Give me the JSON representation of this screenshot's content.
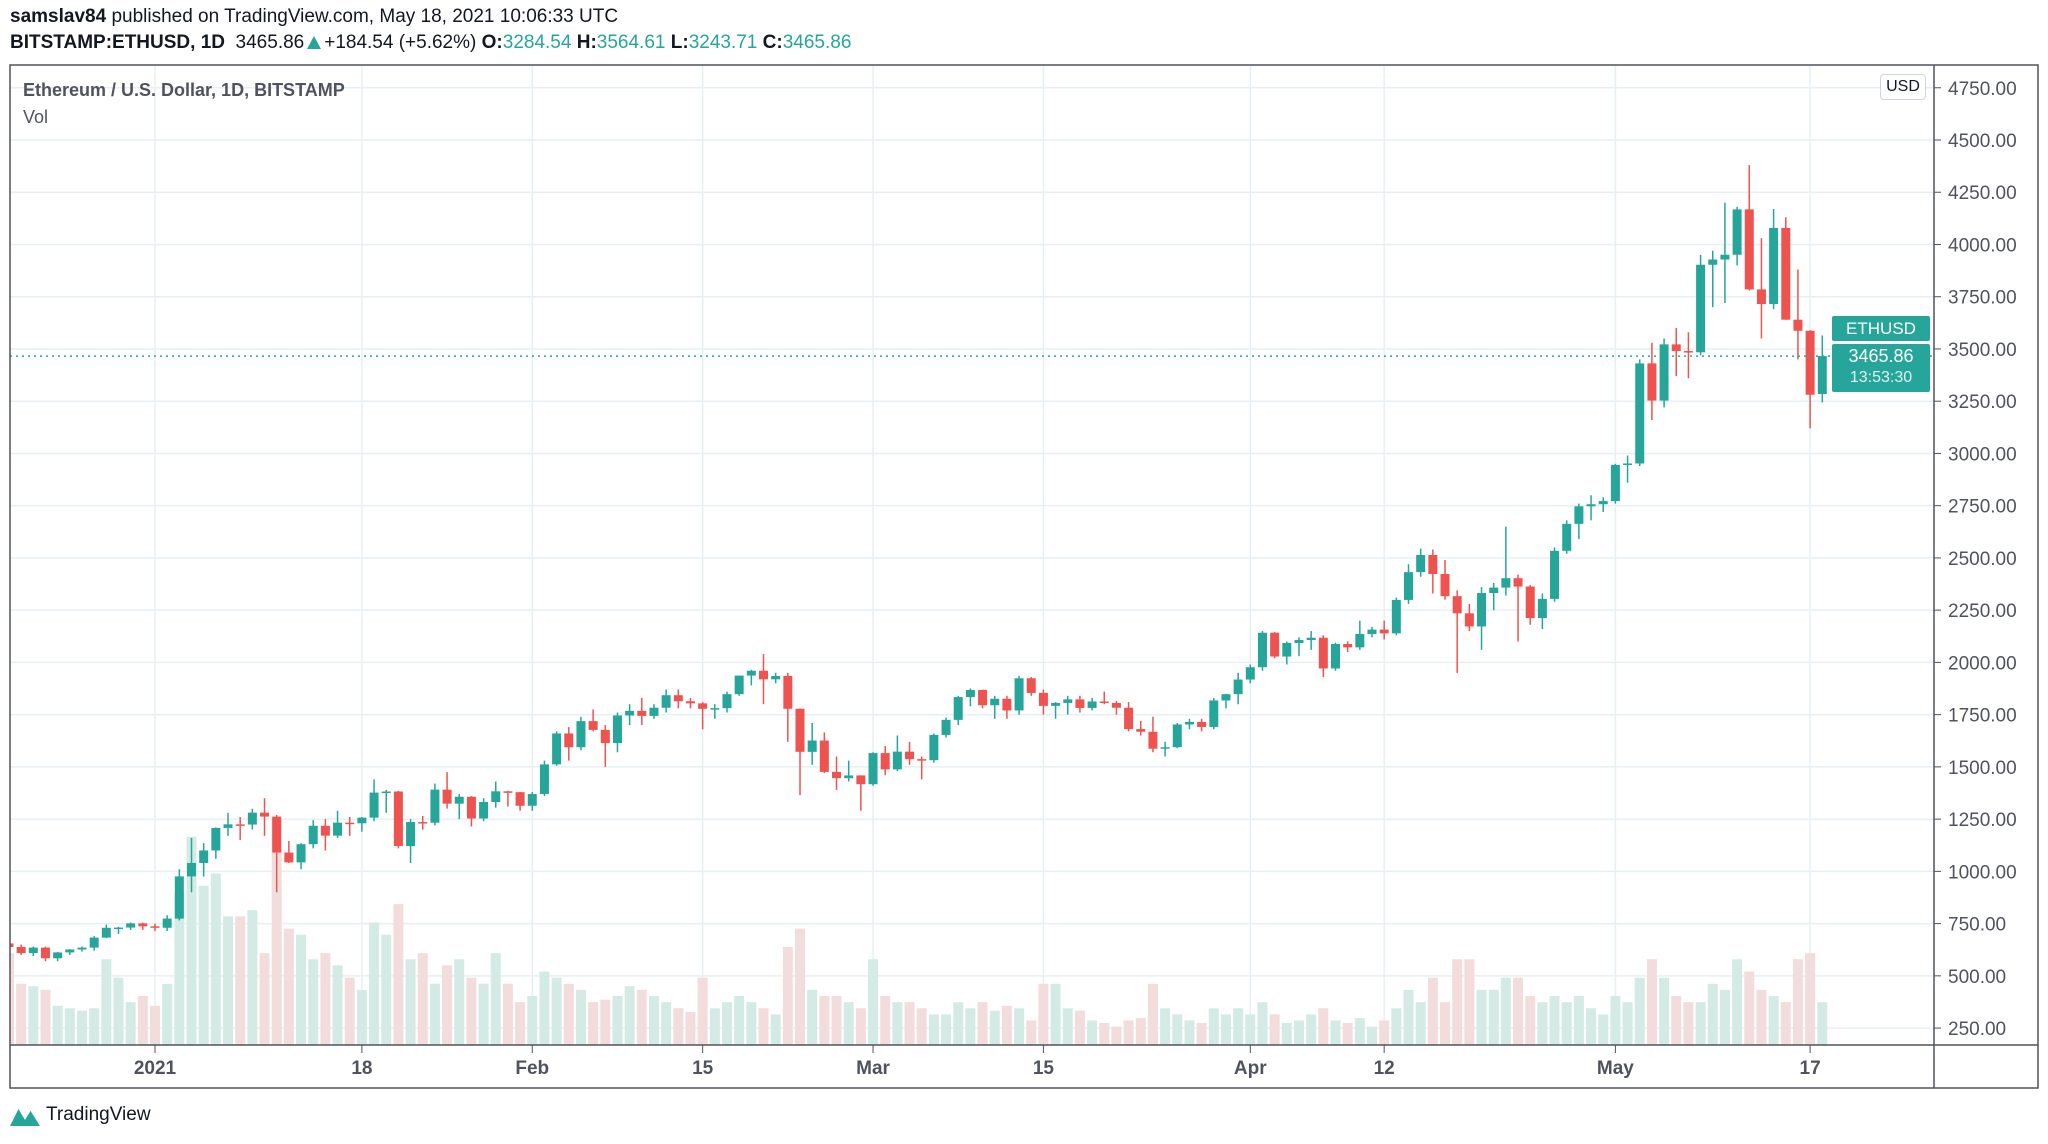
{
  "header": {
    "author": "samslav84",
    "published_text": "published on TradingView.com, May 18, 2021 10:06:33 UTC",
    "symbol": "BITSTAMP:ETHUSD, 1D",
    "last": "3465.86",
    "change": "+184.54 (+5.62%)",
    "o_label": "O:",
    "o": "3284.54",
    "h_label": "H:",
    "h": "3564.61",
    "l_label": "L:",
    "l": "3243.71",
    "c_label": "C:",
    "c": "3465.86"
  },
  "legend": {
    "title": "Ethereum / U.S. Dollar, 1D, BITSTAMP",
    "vol": "Vol"
  },
  "currency_badge": "USD",
  "last_price": {
    "symbol": "ETHUSD",
    "price": "3465.86",
    "countdown": "13:53:30",
    "value": 3465.86
  },
  "footer": {
    "brand": "TradingView"
  },
  "colors": {
    "up": "#26a69a",
    "down": "#ef5350",
    "vol_up": "#d3ebe4",
    "vol_down": "#f3dcdc",
    "grid": "#e8eff3"
  },
  "chart_data": {
    "type": "candlestick",
    "yaxis_ticks": [
      "4750.00",
      "4500.00",
      "4250.00",
      "4000.00",
      "3750.00",
      "3500.00",
      "3250.00",
      "3000.00",
      "2750.00",
      "2500.00",
      "2250.00",
      "2000.00",
      "1750.00",
      "1500.00",
      "1250.00",
      "1000.00",
      "750.00",
      "500.00",
      "250.00"
    ],
    "xaxis_ticks": [
      {
        "label": "2021",
        "date": "2021-01-01"
      },
      {
        "label": "18",
        "date": "2021-01-18"
      },
      {
        "label": "Feb",
        "date": "2021-02-01"
      },
      {
        "label": "15",
        "date": "2021-02-15"
      },
      {
        "label": "Mar",
        "date": "2021-03-01"
      },
      {
        "label": "15",
        "date": "2021-03-15"
      },
      {
        "label": "Apr",
        "date": "2021-04-01"
      },
      {
        "label": "12",
        "date": "2021-04-12"
      },
      {
        "label": "May",
        "date": "2021-05-01"
      },
      {
        "label": "17",
        "date": "2021-05-17"
      }
    ],
    "start_date": "2020-12-20",
    "columns": [
      "open",
      "high",
      "low",
      "close",
      "volume"
    ],
    "candles": [
      [
        655,
        660,
        620,
        638,
        75
      ],
      [
        638,
        650,
        600,
        609,
        50
      ],
      [
        609,
        640,
        595,
        635,
        48
      ],
      [
        635,
        640,
        570,
        584,
        45
      ],
      [
        584,
        615,
        570,
        612,
        32
      ],
      [
        612,
        628,
        600,
        626,
        30
      ],
      [
        626,
        640,
        616,
        635,
        28
      ],
      [
        635,
        690,
        620,
        683,
        30
      ],
      [
        683,
        745,
        680,
        730,
        70
      ],
      [
        730,
        735,
        700,
        731,
        55
      ],
      [
        731,
        755,
        720,
        751,
        35
      ],
      [
        751,
        755,
        720,
        737,
        40
      ],
      [
        737,
        750,
        715,
        730,
        32
      ],
      [
        730,
        790,
        715,
        774,
        50
      ],
      [
        774,
        1010,
        765,
        976,
        125
      ],
      [
        976,
        1160,
        900,
        1040,
        170
      ],
      [
        1040,
        1135,
        975,
        1100,
        130
      ],
      [
        1100,
        1210,
        1060,
        1208,
        140
      ],
      [
        1208,
        1280,
        1170,
        1225,
        105
      ],
      [
        1225,
        1260,
        1150,
        1224,
        105
      ],
      [
        1224,
        1300,
        1200,
        1281,
        110
      ],
      [
        1281,
        1350,
        1170,
        1262,
        75
      ],
      [
        1262,
        1270,
        900,
        1090,
        185
      ],
      [
        1090,
        1145,
        1040,
        1043,
        95
      ],
      [
        1043,
        1135,
        1010,
        1130,
        90
      ],
      [
        1130,
        1245,
        1110,
        1218,
        70
      ],
      [
        1218,
        1250,
        1100,
        1171,
        75
      ],
      [
        1171,
        1290,
        1160,
        1233,
        65
      ],
      [
        1233,
        1260,
        1170,
        1230,
        55
      ],
      [
        1230,
        1260,
        1190,
        1257,
        45
      ],
      [
        1257,
        1440,
        1240,
        1377,
        100
      ],
      [
        1377,
        1390,
        1280,
        1382,
        90
      ],
      [
        1382,
        1385,
        1110,
        1121,
        115
      ],
      [
        1121,
        1250,
        1040,
        1236,
        70
      ],
      [
        1236,
        1265,
        1200,
        1233,
        75
      ],
      [
        1233,
        1420,
        1220,
        1391,
        50
      ],
      [
        1391,
        1475,
        1300,
        1324,
        65
      ],
      [
        1324,
        1370,
        1250,
        1357,
        70
      ],
      [
        1357,
        1360,
        1215,
        1253,
        55
      ],
      [
        1253,
        1350,
        1240,
        1332,
        50
      ],
      [
        1332,
        1430,
        1305,
        1383,
        75
      ],
      [
        1383,
        1385,
        1310,
        1379,
        50
      ],
      [
        1379,
        1380,
        1290,
        1314,
        35
      ],
      [
        1314,
        1380,
        1290,
        1370,
        40
      ],
      [
        1370,
        1530,
        1360,
        1512,
        60
      ],
      [
        1512,
        1670,
        1505,
        1660,
        55
      ],
      [
        1660,
        1690,
        1530,
        1594,
        50
      ],
      [
        1594,
        1740,
        1580,
        1719,
        45
      ],
      [
        1719,
        1775,
        1670,
        1677,
        35
      ],
      [
        1677,
        1700,
        1500,
        1614,
        37
      ],
      [
        1614,
        1760,
        1570,
        1746,
        40
      ],
      [
        1746,
        1800,
        1700,
        1768,
        48
      ],
      [
        1768,
        1830,
        1700,
        1744,
        45
      ],
      [
        1744,
        1800,
        1730,
        1783,
        40
      ],
      [
        1783,
        1870,
        1760,
        1843,
        35
      ],
      [
        1843,
        1870,
        1780,
        1814,
        30
      ],
      [
        1814,
        1830,
        1780,
        1804,
        27
      ],
      [
        1804,
        1810,
        1680,
        1778,
        55
      ],
      [
        1778,
        1800,
        1730,
        1781,
        30
      ],
      [
        1781,
        1860,
        1760,
        1848,
        35
      ],
      [
        1848,
        1930,
        1840,
        1937,
        40
      ],
      [
        1937,
        1965,
        1890,
        1960,
        35
      ],
      [
        1960,
        2040,
        1800,
        1919,
        30
      ],
      [
        1919,
        1950,
        1900,
        1935,
        25
      ],
      [
        1935,
        1950,
        1620,
        1778,
        80
      ],
      [
        1778,
        1780,
        1365,
        1572,
        95
      ],
      [
        1572,
        1710,
        1510,
        1626,
        45
      ],
      [
        1626,
        1665,
        1470,
        1476,
        40
      ],
      [
        1476,
        1550,
        1390,
        1446,
        40
      ],
      [
        1446,
        1530,
        1430,
        1459,
        35
      ],
      [
        1459,
        1460,
        1290,
        1417,
        30
      ],
      [
        1417,
        1570,
        1410,
        1566,
        70
      ],
      [
        1566,
        1600,
        1460,
        1488,
        40
      ],
      [
        1488,
        1650,
        1480,
        1573,
        35
      ],
      [
        1573,
        1620,
        1510,
        1537,
        35
      ],
      [
        1537,
        1550,
        1440,
        1532,
        30
      ],
      [
        1532,
        1660,
        1520,
        1653,
        25
      ],
      [
        1653,
        1735,
        1640,
        1725,
        25
      ],
      [
        1725,
        1840,
        1700,
        1834,
        35
      ],
      [
        1834,
        1875,
        1790,
        1868,
        30
      ],
      [
        1868,
        1870,
        1780,
        1795,
        35
      ],
      [
        1795,
        1840,
        1730,
        1826,
        28
      ],
      [
        1826,
        1840,
        1730,
        1770,
        32
      ],
      [
        1770,
        1935,
        1750,
        1924,
        30
      ],
      [
        1924,
        1930,
        1840,
        1854,
        20
      ],
      [
        1854,
        1870,
        1750,
        1792,
        50
      ],
      [
        1792,
        1810,
        1730,
        1806,
        50
      ],
      [
        1806,
        1840,
        1750,
        1823,
        30
      ],
      [
        1823,
        1840,
        1760,
        1782,
        28
      ],
      [
        1782,
        1830,
        1770,
        1813,
        20
      ],
      [
        1813,
        1860,
        1800,
        1806,
        18
      ],
      [
        1806,
        1815,
        1750,
        1783,
        15
      ],
      [
        1783,
        1810,
        1670,
        1681,
        20
      ],
      [
        1681,
        1720,
        1650,
        1668,
        22
      ],
      [
        1668,
        1740,
        1570,
        1587,
        50
      ],
      [
        1587,
        1620,
        1550,
        1594,
        30
      ],
      [
        1594,
        1710,
        1590,
        1703,
        25
      ],
      [
        1703,
        1730,
        1680,
        1715,
        20
      ],
      [
        1715,
        1730,
        1670,
        1691,
        18
      ],
      [
        1691,
        1830,
        1680,
        1818,
        30
      ],
      [
        1818,
        1850,
        1780,
        1848,
        25
      ],
      [
        1848,
        1950,
        1800,
        1918,
        30
      ],
      [
        1918,
        1990,
        1900,
        1977,
        25
      ],
      [
        1977,
        2150,
        1960,
        2142,
        35
      ],
      [
        2142,
        2145,
        2020,
        2028,
        25
      ],
      [
        2028,
        2100,
        1990,
        2093,
        18
      ],
      [
        2093,
        2120,
        2030,
        2107,
        20
      ],
      [
        2107,
        2150,
        2060,
        2118,
        25
      ],
      [
        2118,
        2130,
        1930,
        1971,
        30
      ],
      [
        1971,
        2095,
        1960,
        2088,
        20
      ],
      [
        2088,
        2100,
        2050,
        2072,
        18
      ],
      [
        2072,
        2200,
        2060,
        2136,
        22
      ],
      [
        2136,
        2170,
        2120,
        2157,
        15
      ],
      [
        2157,
        2200,
        2110,
        2139,
        20
      ],
      [
        2139,
        2310,
        2130,
        2299,
        30
      ],
      [
        2299,
        2470,
        2280,
        2432,
        45
      ],
      [
        2432,
        2545,
        2410,
        2514,
        35
      ],
      [
        2514,
        2540,
        2330,
        2423,
        55
      ],
      [
        2423,
        2490,
        2300,
        2317,
        35
      ],
      [
        2317,
        2345,
        1950,
        2235,
        70
      ],
      [
        2235,
        2280,
        2150,
        2172,
        70
      ],
      [
        2172,
        2360,
        2060,
        2332,
        45
      ],
      [
        2332,
        2380,
        2250,
        2358,
        45
      ],
      [
        2358,
        2650,
        2320,
        2403,
        55
      ],
      [
        2403,
        2420,
        2100,
        2363,
        55
      ],
      [
        2363,
        2370,
        2180,
        2212,
        40
      ],
      [
        2212,
        2330,
        2160,
        2304,
        35
      ],
      [
        2304,
        2550,
        2290,
        2534,
        40
      ],
      [
        2534,
        2680,
        2520,
        2663,
        35
      ],
      [
        2663,
        2760,
        2590,
        2747,
        40
      ],
      [
        2747,
        2800,
        2680,
        2757,
        30
      ],
      [
        2757,
        2790,
        2720,
        2772,
        25
      ],
      [
        2772,
        2950,
        2760,
        2945,
        40
      ],
      [
        2945,
        2990,
        2860,
        2952,
        35
      ],
      [
        2952,
        3450,
        2940,
        3431,
        55
      ],
      [
        3431,
        3530,
        3160,
        3253,
        70
      ],
      [
        3253,
        3550,
        3220,
        3522,
        55
      ],
      [
        3522,
        3600,
        3370,
        3490,
        40
      ],
      [
        3490,
        3580,
        3360,
        3484,
        35
      ],
      [
        3484,
        3950,
        3470,
        3903,
        35
      ],
      [
        3903,
        3970,
        3700,
        3928,
        50
      ],
      [
        3928,
        4200,
        3720,
        3951,
        45
      ],
      [
        3951,
        4180,
        3900,
        4168,
        70
      ],
      [
        4168,
        4380,
        3780,
        3785,
        60
      ],
      [
        3785,
        4030,
        3550,
        3715,
        45
      ],
      [
        3715,
        4170,
        3690,
        4079,
        40
      ],
      [
        4079,
        4130,
        3640,
        3640,
        35
      ],
      [
        3640,
        3880,
        3450,
        3587,
        70
      ],
      [
        3587,
        3590,
        3120,
        3281,
        75
      ],
      [
        3284.54,
        3564.61,
        3243.71,
        3465.86,
        35
      ]
    ]
  }
}
